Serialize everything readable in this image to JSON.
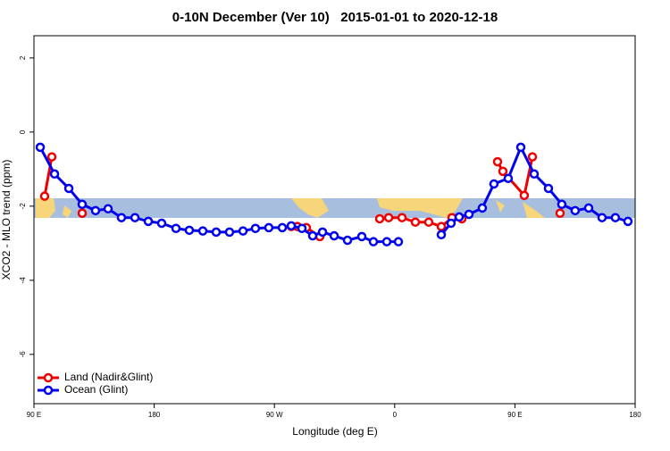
{
  "chart_data": {
    "type": "line",
    "title": "0-10N December (Ver 10)   2015-01-01 to 2020-12-18",
    "x_label": "Longitude (deg E)",
    "y_label": "XCO2 - MLO trend (ppm)",
    "xlim": [
      90,
      540
    ],
    "ylim": [
      -7.33,
      2.6
    ],
    "xticks": [
      {
        "value": 90,
        "label": "90 E"
      },
      180,
      {
        "value": 270,
        "label": "90 W"
      },
      {
        "value": 360,
        "label": "0"
      },
      {
        "value": 450,
        "label": "90 E"
      },
      {
        "value": 540,
        "label": "180"
      }
    ],
    "yticks": [
      2,
      0,
      -2,
      -4,
      -6
    ],
    "legend": "bottom-left",
    "series": [
      {
        "name": "Land (Nadir&Glint)",
        "color": "#ee0000",
        "x": [
          98.0,
          103.4,
          115,
          126.1,
          200,
          282.6,
          287.2,
          293.9,
          304.0,
          330,
          348.8,
          355.5,
          365.5,
          375.5,
          385.5,
          394.9,
          402.9,
          410.3,
          420,
          437.0,
          441.0,
          457.0,
          463.1,
          470,
          483.8
        ],
        "values": [
          -1.73,
          -0.67,
          null,
          -2.19,
          null,
          -2.55,
          -2.55,
          -2.58,
          -2.82,
          null,
          -2.34,
          -2.31,
          -2.31,
          -2.43,
          -2.43,
          -2.55,
          -2.31,
          -2.34,
          null,
          -0.8,
          -1.06,
          -1.71,
          -0.67,
          null,
          -2.19
        ]
      },
      {
        "name": "Ocean (Glint)",
        "color": "#0000ee",
        "x": [
          94.7,
          105.4,
          116.1,
          126.1,
          136.1,
          145.5,
          155.5,
          165.6,
          175.6,
          185.6,
          196.3,
          206.3,
          216.4,
          226.4,
          236.4,
          246.5,
          255.8,
          265.8,
          275.9,
          282.6,
          290.6,
          298.6,
          306.0,
          314.7,
          324.7,
          335.4,
          344.1,
          354.1,
          362.8,
          380,
          394.9,
          402.2,
          408.3,
          415.6,
          425.6,
          434.3,
          445.0,
          454.4,
          464.4,
          475.1,
          485.1,
          495.1,
          505.2,
          515.2,
          525.2,
          534.6
        ],
        "values": [
          -0.41,
          -1.13,
          -1.52,
          -1.95,
          -2.12,
          -2.07,
          -2.31,
          -2.31,
          -2.41,
          -2.46,
          -2.6,
          -2.65,
          -2.67,
          -2.7,
          -2.7,
          -2.67,
          -2.6,
          -2.58,
          -2.58,
          -2.53,
          -2.6,
          -2.8,
          -2.7,
          -2.8,
          -2.92,
          -2.82,
          -2.96,
          -2.96,
          -2.96,
          null,
          -2.77,
          -2.46,
          -2.29,
          -2.22,
          -2.05,
          -1.4,
          -1.25,
          -0.41,
          -1.13,
          -1.52,
          -1.95,
          -2.12,
          -2.05,
          -2.31,
          -2.31,
          -2.41
        ]
      }
    ]
  }
}
